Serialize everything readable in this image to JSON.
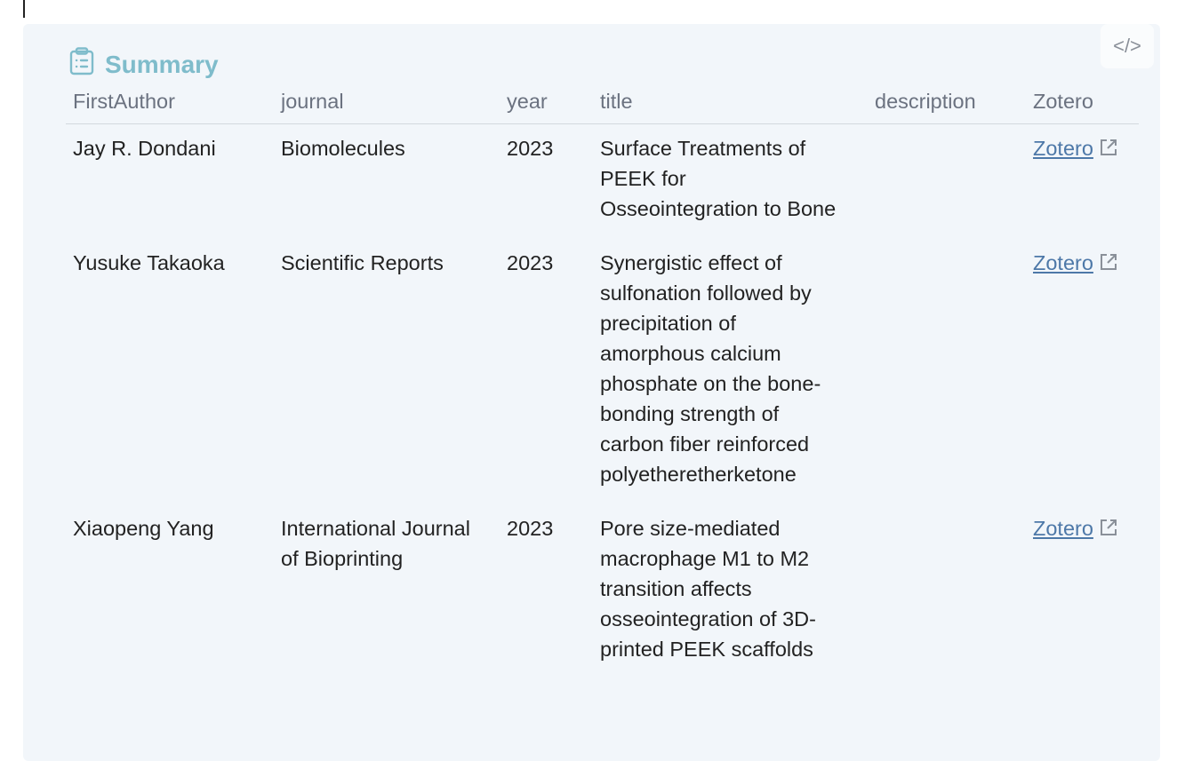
{
  "callout": {
    "title": "Summary",
    "icon": "clipboard-list-icon",
    "code_button_label": "</>"
  },
  "table": {
    "headers": [
      "FirstAuthor",
      "journal",
      "year",
      "title",
      "description",
      "Zotero"
    ],
    "rows": [
      {
        "author": "Jay R. Dondani",
        "journal": "Biomolecules",
        "year": "2023",
        "title": "Surface Treatments of PEEK for Osseointegration to Bone",
        "description": "",
        "zotero": "Zotero"
      },
      {
        "author": "Yusuke Takaoka",
        "journal": "Scientific Reports",
        "year": "2023",
        "title": "Synergistic effect of sulfonation followed by precipitation of amorphous calcium phosphate on the bone-bonding strength of carbon fiber reinforced polyetheretherketone",
        "description": "",
        "zotero": "Zotero"
      },
      {
        "author": "Xiaopeng Yang",
        "journal": "International Journal of Bioprinting",
        "year": "2023",
        "title": "Pore size-mediated macrophage M1 to M2 transition affects osseointegration of 3D-printed PEEK scaffolds",
        "description": "",
        "zotero": "Zotero"
      }
    ]
  },
  "colors": {
    "title": "#7fbccb",
    "link": "#4d78a8",
    "background": "#f2f6fa"
  }
}
